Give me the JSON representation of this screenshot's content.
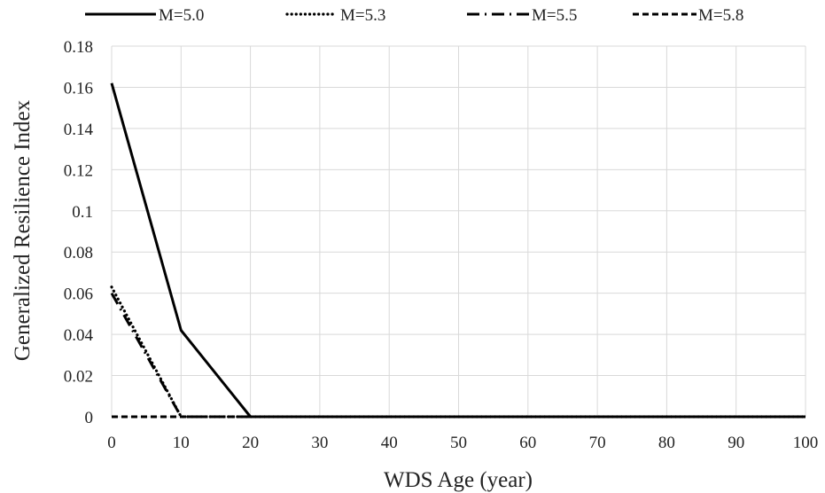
{
  "chart_data": {
    "type": "line",
    "title": "",
    "xlabel": "WDS Age (year)",
    "ylabel": "Generalized Resilience Index",
    "xlim": [
      0,
      100
    ],
    "ylim": [
      0,
      0.18
    ],
    "x_ticks": [
      0,
      10,
      20,
      30,
      40,
      50,
      60,
      70,
      80,
      90,
      100
    ],
    "x_tick_labels": [
      "0",
      "10",
      "20",
      "30",
      "40",
      "50",
      "60",
      "70",
      "80",
      "90",
      "100"
    ],
    "y_ticks": [
      0,
      0.02,
      0.04,
      0.06,
      0.08,
      0.1,
      0.12,
      0.14,
      0.16,
      0.18
    ],
    "y_tick_labels": [
      "0",
      "0.02",
      "0.04",
      "0.06",
      "0.08",
      "0.1",
      "0.12",
      "0.14",
      "0.16",
      "0.18"
    ],
    "grid": true,
    "legend_position": "top",
    "series": [
      {
        "name": "M=5.0",
        "style": "solid",
        "color": "#000000",
        "x": [
          0,
          10,
          20,
          30,
          40,
          50,
          60,
          70,
          80,
          90,
          100
        ],
        "y": [
          0.162,
          0.042,
          0,
          0,
          0,
          0,
          0,
          0,
          0,
          0,
          0
        ]
      },
      {
        "name": "M=5.3",
        "style": "dotted",
        "color": "#000000",
        "x": [
          0,
          10,
          20,
          30,
          40,
          50,
          60,
          70,
          80,
          90,
          100
        ],
        "y": [
          0.063,
          0,
          0,
          0,
          0,
          0,
          0,
          0,
          0,
          0,
          0
        ]
      },
      {
        "name": "M=5.5",
        "style": "dashdot",
        "color": "#000000",
        "x": [
          0,
          10,
          20,
          30,
          40,
          50,
          60,
          70,
          80,
          90,
          100
        ],
        "y": [
          0.06,
          0,
          0,
          0,
          0,
          0,
          0,
          0,
          0,
          0,
          0
        ]
      },
      {
        "name": "M=5.8",
        "style": "dashed",
        "color": "#000000",
        "x": [
          0,
          10,
          20,
          30,
          40,
          50,
          60,
          70,
          80,
          90,
          100
        ],
        "y": [
          0,
          0,
          0,
          0,
          0,
          0,
          0,
          0,
          0,
          0,
          0
        ]
      }
    ]
  }
}
